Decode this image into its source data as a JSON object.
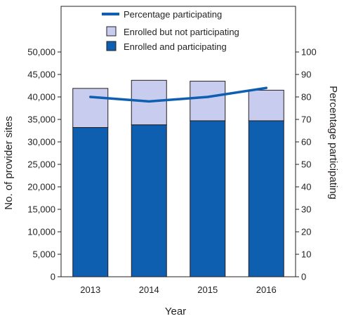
{
  "chart_data": {
    "type": "bar",
    "stacked": true,
    "categories": [
      "2013",
      "2014",
      "2015",
      "2016"
    ],
    "series": [
      {
        "name": "Enrolled and participating",
        "kind": "bar",
        "axis": "left",
        "values": [
          33200,
          33800,
          34700,
          34700
        ]
      },
      {
        "name": "Enrolled but not participating",
        "kind": "bar",
        "axis": "left",
        "values": [
          8700,
          9900,
          8800,
          6800
        ]
      },
      {
        "name": "Percentage participating",
        "kind": "line",
        "axis": "right",
        "values": [
          80,
          78,
          80,
          84
        ]
      }
    ],
    "xlabel": "Year",
    "ylabel": "No. of provider sites",
    "y2label": "Percentage participating",
    "ylim": [
      0,
      50000
    ],
    "y2lim": [
      0,
      100
    ],
    "yticks": [
      "0",
      "5,000",
      "10,000",
      "15,000",
      "20,000",
      "25,000",
      "30,000",
      "35,000",
      "40,000",
      "45,000",
      "50,000"
    ],
    "y2ticks": [
      "0",
      "10",
      "20",
      "30",
      "40",
      "50",
      "60",
      "70",
      "80",
      "90",
      "100"
    ],
    "grid": false,
    "legend_position": "top-inside",
    "colors": {
      "participating": "#0e5fb0",
      "not_participating": "#c8cdf0",
      "line": "#0e5fb0",
      "axis": "#231f20"
    }
  }
}
